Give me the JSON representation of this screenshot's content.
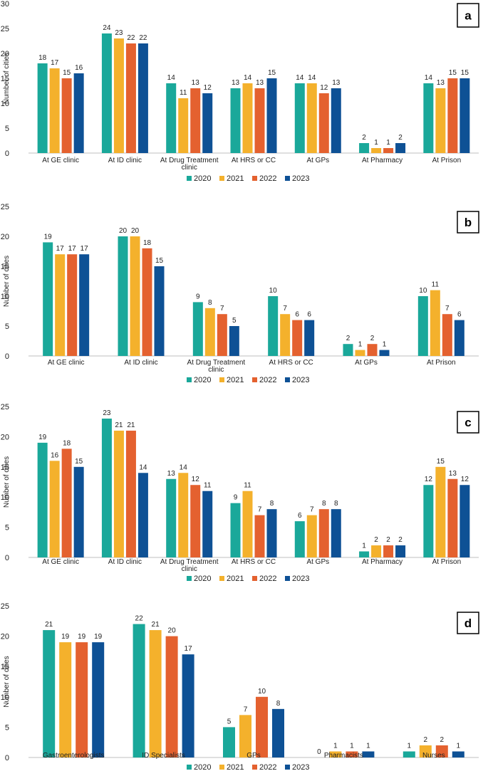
{
  "colors": {
    "2020": "#1aa89a",
    "2021": "#f4b12c",
    "2022": "#e4612f",
    "2023": "#0e5195",
    "axis": "#bfbfbf",
    "text": "#222222"
  },
  "series_names": [
    "2020",
    "2021",
    "2022",
    "2023"
  ],
  "chart_data": [
    {
      "type": "bar",
      "panel_label": "a",
      "ylabel": "Number of cities",
      "ylim": [
        0,
        30
      ],
      "yticks": [
        0,
        5,
        10,
        15,
        20,
        25,
        30
      ],
      "categories": [
        "At GE clinic",
        "At ID clinic",
        "At Drug Treatment clinic",
        "At HRS or CC",
        "At GPs",
        "At Pharmacy",
        "At Prison"
      ],
      "category_lines": [
        [
          "At GE clinic"
        ],
        [
          "At ID clinic"
        ],
        [
          "At Drug Treatment",
          "clinic"
        ],
        [
          "At HRS or CC"
        ],
        [
          "At GPs"
        ],
        [
          "At Pharmacy"
        ],
        [
          "At Prison"
        ]
      ],
      "series": [
        {
          "name": "2020",
          "values": [
            18,
            24,
            14,
            13,
            14,
            2,
            14
          ]
        },
        {
          "name": "2021",
          "values": [
            17,
            23,
            11,
            14,
            14,
            1,
            13
          ]
        },
        {
          "name": "2022",
          "values": [
            15,
            22,
            13,
            13,
            12,
            1,
            15
          ]
        },
        {
          "name": "2023",
          "values": [
            16,
            22,
            12,
            15,
            13,
            2,
            15
          ]
        }
      ],
      "legend": "bottom-center"
    },
    {
      "type": "bar",
      "panel_label": "b",
      "ylabel": "Number of cities",
      "ylim": [
        0,
        25
      ],
      "yticks": [
        0,
        5,
        10,
        15,
        20,
        25
      ],
      "categories": [
        "At GE clinic",
        "At ID clinic",
        "At Drug Treatment clinic",
        "At HRS or CC",
        "At GPs",
        "At Prison"
      ],
      "category_lines": [
        [
          "At GE clinic"
        ],
        [
          "At ID clinic"
        ],
        [
          "At Drug Treatment",
          "clinic"
        ],
        [
          "At HRS or CC"
        ],
        [
          "At GPs"
        ],
        [
          "At Prison"
        ]
      ],
      "series": [
        {
          "name": "2020",
          "values": [
            19,
            20,
            9,
            10,
            2,
            10
          ]
        },
        {
          "name": "2021",
          "values": [
            17,
            20,
            8,
            7,
            1,
            11
          ]
        },
        {
          "name": "2022",
          "values": [
            17,
            18,
            7,
            6,
            2,
            7
          ]
        },
        {
          "name": "2023",
          "values": [
            17,
            15,
            5,
            6,
            1,
            6
          ]
        }
      ],
      "legend": "bottom-center"
    },
    {
      "type": "bar",
      "panel_label": "c",
      "ylabel": "Number of cities",
      "ylim": [
        0,
        25
      ],
      "yticks": [
        0,
        5,
        10,
        15,
        20,
        25
      ],
      "categories": [
        "At GE clinic",
        "At ID clinic",
        "At Drug Treatment clinic",
        "At HRS or CC",
        "At GPs",
        "At Pharmacy",
        "At Prison"
      ],
      "category_lines": [
        [
          "At GE clinic"
        ],
        [
          "At ID clinic"
        ],
        [
          "At Drug Treatment",
          "clinic"
        ],
        [
          "At HRS or CC"
        ],
        [
          "At GPs"
        ],
        [
          "At Pharmacy"
        ],
        [
          "At Prison"
        ]
      ],
      "series": [
        {
          "name": "2020",
          "values": [
            19,
            23,
            13,
            9,
            6,
            1,
            12
          ]
        },
        {
          "name": "2021",
          "values": [
            16,
            21,
            14,
            11,
            7,
            2,
            15
          ]
        },
        {
          "name": "2022",
          "values": [
            18,
            21,
            12,
            7,
            8,
            2,
            13
          ]
        },
        {
          "name": "2023",
          "values": [
            15,
            14,
            11,
            8,
            8,
            2,
            12
          ]
        }
      ],
      "legend": "bottom-center"
    },
    {
      "type": "bar",
      "panel_label": "d",
      "ylabel": "Number of cities",
      "ylim": [
        0,
        25
      ],
      "yticks": [
        0,
        5,
        10,
        15,
        20,
        25
      ],
      "categories": [
        "Gastroenterologists",
        "ID Specialists",
        "GPs",
        "Pharmacists",
        "Nurses"
      ],
      "category_lines": [
        [
          "Gastroenterologists"
        ],
        [
          "ID Specialists"
        ],
        [
          "GPs"
        ],
        [
          "Pharmacists"
        ],
        [
          "Nurses"
        ]
      ],
      "series": [
        {
          "name": "2020",
          "values": [
            21,
            22,
            5,
            0,
            1
          ]
        },
        {
          "name": "2021",
          "values": [
            19,
            21,
            7,
            1,
            2
          ]
        },
        {
          "name": "2022",
          "values": [
            19,
            20,
            10,
            1,
            2
          ]
        },
        {
          "name": "2023",
          "values": [
            19,
            17,
            8,
            1,
            1
          ]
        }
      ],
      "legend": "bottom-center"
    }
  ]
}
